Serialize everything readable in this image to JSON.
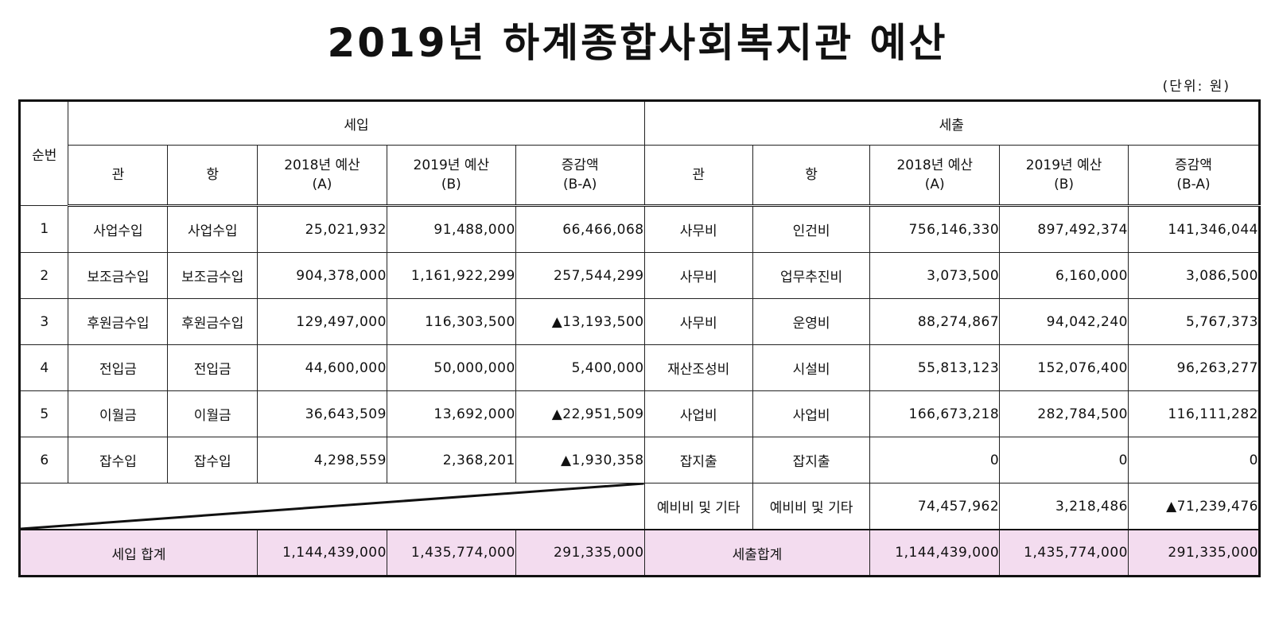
{
  "title": "2019년 하계종합사회복지관 예산",
  "unit": "(단위: 원)",
  "headers": {
    "no": "순번",
    "income": "세입",
    "expense": "세출",
    "gwan": "관",
    "hang": "항",
    "budget2018_line1": "2018년 예산",
    "budget2018_line2": "(A)",
    "budget2019_line1": "2019년 예산",
    "budget2019_line2": "(B)",
    "diff_line1": "증감액",
    "diff_line2": "(B-A)"
  },
  "rows": [
    {
      "no": "1",
      "in_gwan": "사업수입",
      "in_hang": "사업수입",
      "in_2018": "25,021,932",
      "in_2019": "91,488,000",
      "in_diff": "66,466,068",
      "ex_gwan": "사무비",
      "ex_hang": "인건비",
      "ex_2018": "756,146,330",
      "ex_2019": "897,492,374",
      "ex_diff": "141,346,044"
    },
    {
      "no": "2",
      "in_gwan": "보조금수입",
      "in_hang": "보조금수입",
      "in_2018": "904,378,000",
      "in_2019": "1,161,922,299",
      "in_diff": "257,544,299",
      "ex_gwan": "사무비",
      "ex_hang": "업무추진비",
      "ex_2018": "3,073,500",
      "ex_2019": "6,160,000",
      "ex_diff": "3,086,500"
    },
    {
      "no": "3",
      "in_gwan": "후원금수입",
      "in_hang": "후원금수입",
      "in_2018": "129,497,000",
      "in_2019": "116,303,500",
      "in_diff": "▲13,193,500",
      "ex_gwan": "사무비",
      "ex_hang": "운영비",
      "ex_2018": "88,274,867",
      "ex_2019": "94,042,240",
      "ex_diff": "5,767,373"
    },
    {
      "no": "4",
      "in_gwan": "전입금",
      "in_hang": "전입금",
      "in_2018": "44,600,000",
      "in_2019": "50,000,000",
      "in_diff": "5,400,000",
      "ex_gwan": "재산조성비",
      "ex_hang": "시설비",
      "ex_2018": "55,813,123",
      "ex_2019": "152,076,400",
      "ex_diff": "96,263,277"
    },
    {
      "no": "5",
      "in_gwan": "이월금",
      "in_hang": "이월금",
      "in_2018": "36,643,509",
      "in_2019": "13,692,000",
      "in_diff": "▲22,951,509",
      "ex_gwan": "사업비",
      "ex_hang": "사업비",
      "ex_2018": "166,673,218",
      "ex_2019": "282,784,500",
      "ex_diff": "116,111,282"
    },
    {
      "no": "6",
      "in_gwan": "잡수입",
      "in_hang": "잡수입",
      "in_2018": "4,298,559",
      "in_2019": "2,368,201",
      "in_diff": "▲1,930,358",
      "ex_gwan": "잡지출",
      "ex_hang": "잡지출",
      "ex_2018": "0",
      "ex_2019": "0",
      "ex_diff": "0"
    }
  ],
  "extra_row": {
    "ex_gwan": "예비비 및 기타",
    "ex_hang": "예비비 및 기타",
    "ex_2018": "74,457,962",
    "ex_2019": "3,218,486",
    "ex_diff": "▲71,239,476"
  },
  "totals": {
    "income_label": "세입 합계",
    "in_2018": "1,144,439,000",
    "in_2019": "1,435,774,000",
    "in_diff": "291,335,000",
    "expense_label": "세출합계",
    "ex_2018": "1,144,439,000",
    "ex_2019": "1,435,774,000",
    "ex_diff": "291,335,000"
  },
  "colors": {
    "total_row_bg": "#f3dcef"
  }
}
